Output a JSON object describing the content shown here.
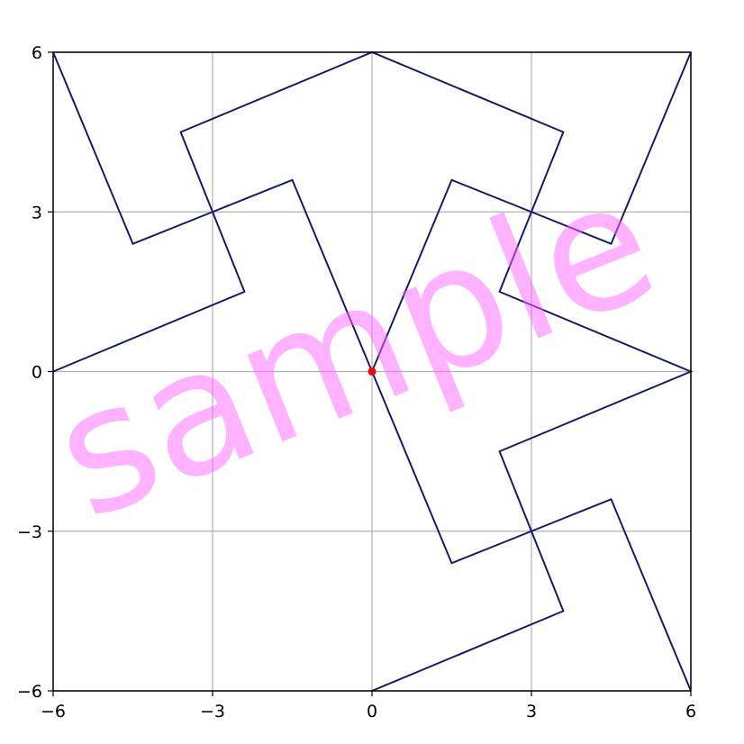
{
  "chart_data": {
    "type": "line",
    "title": "",
    "xlabel": "",
    "ylabel": "",
    "xlim": [
      -6,
      6
    ],
    "ylim": [
      -6,
      6
    ],
    "xticks": [
      -6,
      -3,
      0,
      3,
      6
    ],
    "yticks": [
      -6,
      -3,
      0,
      3,
      6
    ],
    "xtick_labels": [
      "−6",
      "−3",
      "0",
      "3",
      "6"
    ],
    "ytick_labels": [
      "−6",
      "−3",
      "0",
      "3",
      "6"
    ],
    "grid": true,
    "line_color": "#1a1a66",
    "point_color": "#ff0000",
    "series": [
      {
        "closed": true,
        "points": [
          [
            0,
            0
          ],
          [
            1.5,
            3.6
          ],
          [
            3,
            3
          ],
          [
            4.5,
            2.4
          ],
          [
            6,
            6
          ],
          [
            4.5,
            2.4
          ],
          [
            3,
            3
          ],
          [
            2.4,
            1.5
          ],
          [
            6,
            0
          ],
          [
            2.4,
            -1.5
          ],
          [
            3,
            -3
          ],
          [
            3.6,
            -4.5
          ],
          [
            0,
            -6
          ],
          [
            3.6,
            -4.5
          ],
          [
            3,
            -3
          ],
          [
            4.5,
            -2.4
          ],
          [
            6,
            -6
          ],
          [
            4.5,
            -2.4
          ],
          [
            3,
            -3
          ],
          [
            1.5,
            -3.6
          ],
          [
            -1.5,
            3.6
          ],
          [
            -3,
            3
          ],
          [
            -4.5,
            2.4
          ],
          [
            -6,
            6
          ],
          [
            -4.5,
            2.4
          ],
          [
            -3,
            3
          ],
          [
            -2.4,
            1.5
          ],
          [
            -6,
            0
          ],
          [
            -2.4,
            1.5
          ],
          [
            -3,
            3
          ],
          [
            -3.6,
            4.5
          ],
          [
            0,
            6
          ],
          [
            3.6,
            4.5
          ],
          [
            3,
            3
          ],
          [
            1.5,
            3.6
          ]
        ]
      }
    ],
    "highlight_point": [
      0,
      0
    ],
    "watermark": "sample"
  }
}
